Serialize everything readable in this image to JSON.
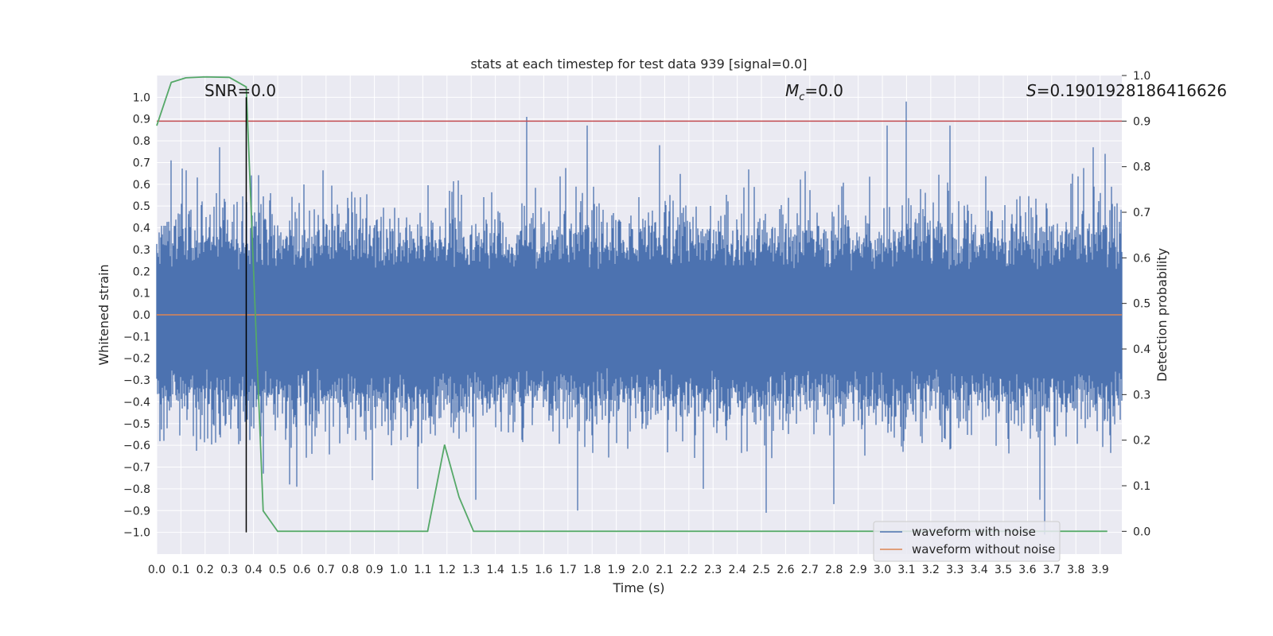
{
  "chart_data": {
    "type": "line",
    "title": "stats at each timestep for test data 939 [signal=0.0]",
    "xlabel": "Time (s)",
    "ylabel": "Whitened strain",
    "y2label": "Detection probability",
    "xlim": [
      0.0,
      3.99
    ],
    "ylim": [
      -1.1,
      1.1
    ],
    "y2lim": [
      -0.05,
      1.0
    ],
    "xticks": [
      "0.0",
      "0.1",
      "0.2",
      "0.3",
      "0.4",
      "0.5",
      "0.6",
      "0.7",
      "0.8",
      "0.9",
      "1.0",
      "1.1",
      "1.2",
      "1.3",
      "1.4",
      "1.5",
      "1.6",
      "1.7",
      "1.8",
      "1.9",
      "2.0",
      "2.1",
      "2.2",
      "2.3",
      "2.4",
      "2.5",
      "2.6",
      "2.7",
      "2.8",
      "2.9",
      "3.0",
      "3.1",
      "3.2",
      "3.3",
      "3.4",
      "3.5",
      "3.6",
      "3.7",
      "3.8",
      "3.9"
    ],
    "yticks": [
      "1.0",
      "0.9",
      "0.8",
      "0.7",
      "0.6",
      "0.5",
      "0.4",
      "0.3",
      "0.2",
      "0.1",
      "0.0",
      "−0.1",
      "−0.2",
      "−0.3",
      "−0.4",
      "−0.5",
      "−0.6",
      "−0.7",
      "−0.8",
      "−0.9",
      "−1.0"
    ],
    "y2ticks": [
      "1.0",
      "0.9",
      "0.8",
      "0.7",
      "0.6",
      "0.5",
      "0.4",
      "0.3",
      "0.2",
      "0.1",
      "0.0"
    ],
    "grid": true,
    "legend_position": "bottom-right",
    "annotations": {
      "snr": "SNR=0.0",
      "mc_symbol": "M",
      "mc_sub": "c",
      "mc_value": "=0.0",
      "s_symbol": "S",
      "s_value": "=0.1901928186416626"
    },
    "noise_envelope": {
      "description_free": true,
      "upper_typical": 0.4,
      "lower_typical": -0.45,
      "peaks": [
        {
          "x": 1.53,
          "y": 0.91
        },
        {
          "x": 1.78,
          "y": 0.87
        },
        {
          "x": 2.08,
          "y": 0.78
        },
        {
          "x": 3.02,
          "y": 0.87
        },
        {
          "x": 3.1,
          "y": 0.98
        },
        {
          "x": 3.28,
          "y": 0.87
        },
        {
          "x": 3.87,
          "y": 0.77
        },
        {
          "x": 0.06,
          "y": 0.71
        },
        {
          "x": 0.26,
          "y": 0.77
        },
        {
          "x": 3.92,
          "y": 0.74
        },
        {
          "x": 2.68,
          "y": 0.66
        }
      ],
      "troughs": [
        {
          "x": 0.44,
          "y": -0.73
        },
        {
          "x": 0.55,
          "y": -0.78
        },
        {
          "x": 0.58,
          "y": -0.79
        },
        {
          "x": 0.89,
          "y": -0.76
        },
        {
          "x": 1.08,
          "y": -0.8
        },
        {
          "x": 1.32,
          "y": -0.85
        },
        {
          "x": 1.74,
          "y": -0.9
        },
        {
          "x": 2.26,
          "y": -0.8
        },
        {
          "x": 2.52,
          "y": -0.91
        },
        {
          "x": 2.8,
          "y": -0.87
        },
        {
          "x": 3.65,
          "y": -0.85
        },
        {
          "x": 3.67,
          "y": -1.01
        }
      ]
    },
    "series": [
      {
        "name": "waveform with noise",
        "color": "#4c72b0",
        "note": "dense noise trace"
      },
      {
        "name": "waveform without noise",
        "color": "#dd8452",
        "x": [
          0.0,
          3.99
        ],
        "y": [
          0.0,
          0.0
        ]
      },
      {
        "name": "",
        "color": "#55a868",
        "axis": "right",
        "x": [
          0.0,
          0.06,
          0.12,
          0.2,
          0.3,
          0.37,
          0.44,
          0.5,
          1.12,
          1.19,
          1.25,
          1.31,
          3.93
        ],
        "y": [
          0.89,
          0.985,
          0.995,
          0.997,
          0.996,
          0.975,
          0.045,
          0.0,
          0.0,
          0.19,
          0.075,
          0.0,
          0.0
        ]
      },
      {
        "name": "",
        "color": "#c44e52",
        "axis": "right",
        "x": [
          0.0,
          3.99
        ],
        "y": [
          0.9,
          0.9
        ]
      }
    ],
    "vertical_marker": {
      "x": 0.37,
      "color": "#000000"
    },
    "colors": {
      "plot_bg": "#eaeaf2",
      "grid": "#ffffff",
      "text": "#262626"
    }
  }
}
